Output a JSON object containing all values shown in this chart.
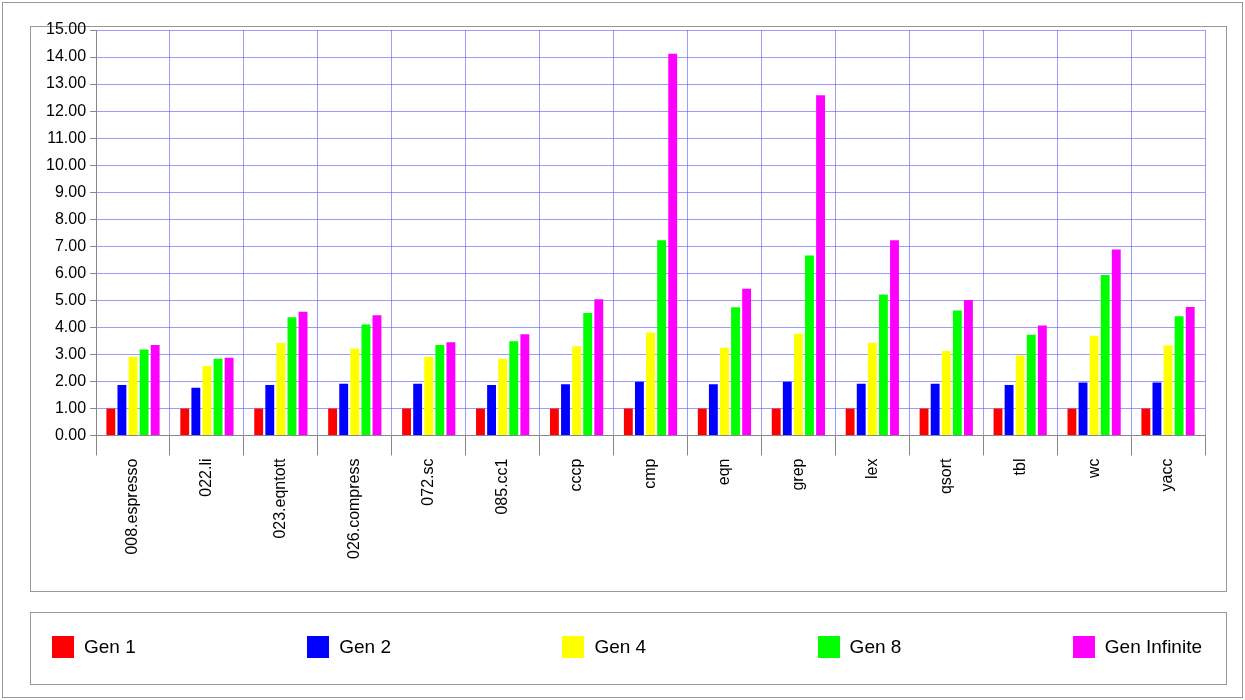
{
  "chart_data": {
    "type": "bar",
    "categories": [
      "008.espresso",
      "022.li",
      "023.eqntott",
      "026.compress",
      "072.sc",
      "085.cc1",
      "cccp",
      "cmp",
      "eqn",
      "grep",
      "lex",
      "qsort",
      "tbl",
      "wc",
      "yacc"
    ],
    "series": [
      {
        "name": "Gen 1",
        "color": "#ff0000",
        "values": [
          1,
          1,
          1,
          1,
          1,
          1,
          1,
          1,
          1,
          1,
          1,
          1,
          1,
          1,
          1
        ]
      },
      {
        "name": "Gen 2",
        "color": "#0000ff",
        "values": [
          1.87,
          1.77,
          1.87,
          1.91,
          1.91,
          1.87,
          1.9,
          1.99,
          1.9,
          1.99,
          1.91,
          1.91,
          1.87,
          1.96,
          1.96
        ]
      },
      {
        "name": "Gen 4",
        "color": "#ffff00",
        "values": [
          2.91,
          2.57,
          3.42,
          3.22,
          2.91,
          2.84,
          3.3,
          3.81,
          3.25,
          3.76,
          3.43,
          3.13,
          2.96,
          3.69,
          3.33
        ]
      },
      {
        "name": "Gen 8",
        "color": "#00ff00",
        "values": [
          3.18,
          2.84,
          4.37,
          4.11,
          3.35,
          3.49,
          4.53,
          7.22,
          4.74,
          6.66,
          5.22,
          4.62,
          3.73,
          5.94,
          4.41
        ]
      },
      {
        "name": "Gen Infinite",
        "color": "#ff00ff",
        "values": [
          3.35,
          2.88,
          4.58,
          4.45,
          3.45,
          3.75,
          5.04,
          14.12,
          5.43,
          12.59,
          7.22,
          5.01,
          4.07,
          6.88,
          4.75
        ]
      }
    ],
    "ylim": [
      0,
      15
    ],
    "yticks": [
      {
        "value": 0,
        "label": "0.00"
      },
      {
        "value": 1,
        "label": "1.00"
      },
      {
        "value": 2,
        "label": "2.00"
      },
      {
        "value": 3,
        "label": "3.00"
      },
      {
        "value": 4,
        "label": "4.00"
      },
      {
        "value": 5,
        "label": "5.00"
      },
      {
        "value": 6,
        "label": "6.00"
      },
      {
        "value": 7,
        "label": "7.00"
      },
      {
        "value": 8,
        "label": "8.00"
      },
      {
        "value": 9,
        "label": "9.00"
      },
      {
        "value": 10,
        "label": "10.00"
      },
      {
        "value": 11,
        "label": "11.00"
      },
      {
        "value": 12,
        "label": "12.00"
      },
      {
        "value": 13,
        "label": "13.00"
      },
      {
        "value": 14,
        "label": "14.00"
      },
      {
        "value": 15,
        "label": "15.00"
      }
    ],
    "grid": true,
    "legend": "bottom"
  }
}
